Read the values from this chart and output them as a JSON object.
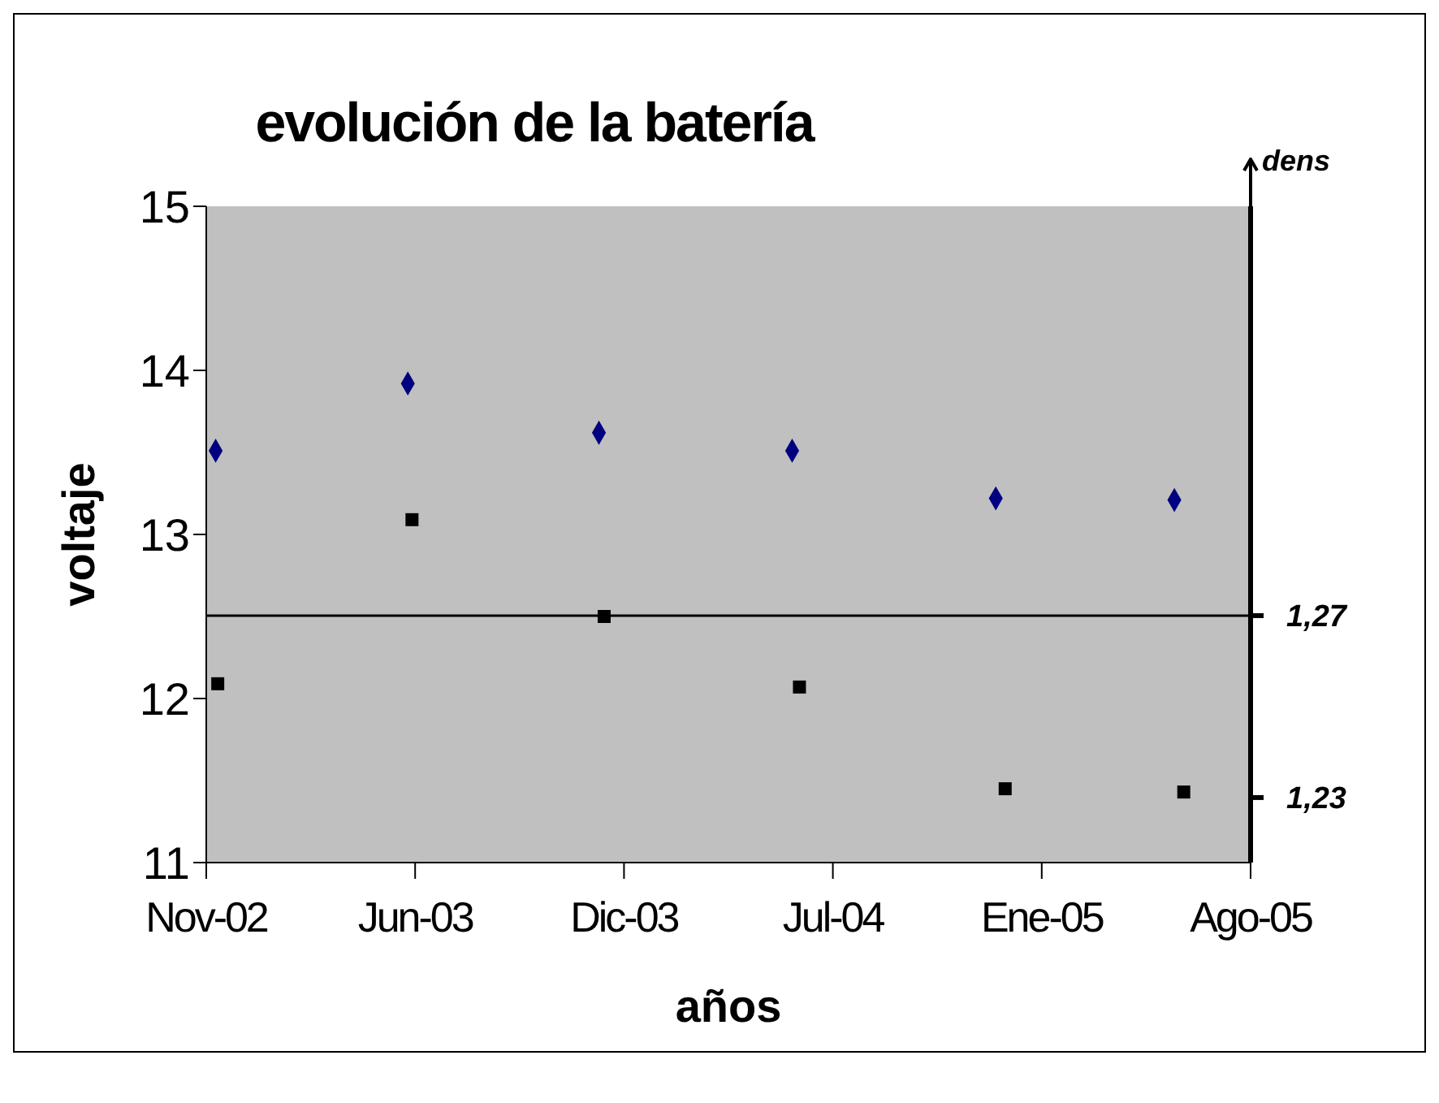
{
  "chart_data": {
    "type": "scatter",
    "title": "evolución de la batería",
    "xlabel": "años",
    "ylabel": "voltaje",
    "y2label": "dens",
    "xlim": [
      "2002-11-15",
      "2005-08-11"
    ],
    "xticks": [
      {
        "value": "2002-11-15",
        "label": "Nov-02"
      },
      {
        "value": "2003-06-03",
        "label": "Jun-03"
      },
      {
        "value": "2003-12-20",
        "label": "Dic-03"
      },
      {
        "value": "2004-07-07",
        "label": "Jul-04"
      },
      {
        "value": "2005-01-23",
        "label": "Ene-05"
      },
      {
        "value": "2005-08-11",
        "label": "Ago-05"
      }
    ],
    "ylim": [
      11,
      15
    ],
    "yticks": [
      11,
      12,
      13,
      14,
      15
    ],
    "y2lim": [
      1.2157,
      1.36
    ],
    "y2ticks": [
      {
        "value": 1.23,
        "label": "1,23"
      },
      {
        "value": 1.27,
        "label": "1,27"
      }
    ],
    "series": [
      {
        "color": "#000080",
        "marker": "diamond",
        "x": [
          "2002-11-24",
          "2003-05-27",
          "2003-11-26",
          "2004-05-29",
          "2004-12-10",
          "2005-05-30"
        ],
        "values": [
          13.51,
          13.92,
          13.62,
          13.51,
          13.22,
          13.21
        ]
      },
      {
        "color": "#000000",
        "marker": "square",
        "x": [
          "2002-11-26",
          "2003-05-31",
          "2003-12-01",
          "2004-06-05",
          "2004-12-19",
          "2005-06-08"
        ],
        "values": [
          12.09,
          13.09,
          12.5,
          12.07,
          11.45,
          11.43
        ]
      }
    ],
    "ref_lines": [
      {
        "axis": "y2",
        "value": 1.27,
        "color": "#000000"
      }
    ],
    "grid": false
  }
}
